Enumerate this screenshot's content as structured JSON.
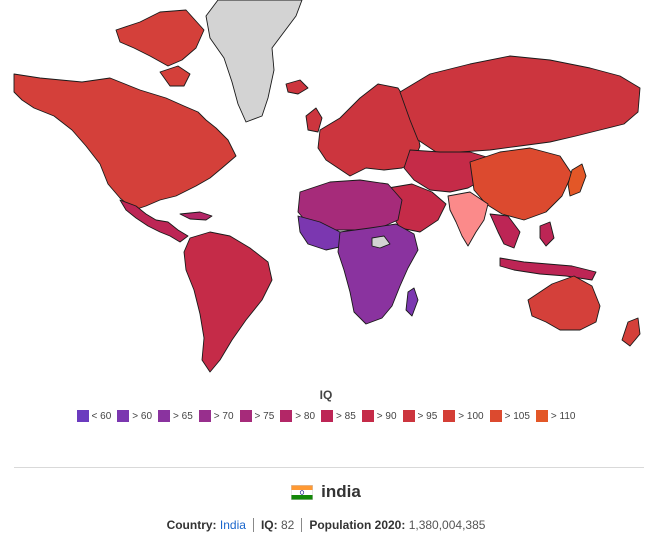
{
  "legend": {
    "title": "IQ",
    "items": [
      {
        "label": "< 60",
        "color": "#6b3bbf"
      },
      {
        "label": "> 60",
        "color": "#7b37b0"
      },
      {
        "label": "> 65",
        "color": "#8a339f"
      },
      {
        "label": "> 70",
        "color": "#982f8d"
      },
      {
        "label": "> 75",
        "color": "#a62b7a"
      },
      {
        "label": "> 80",
        "color": "#b32767"
      },
      {
        "label": "> 85",
        "color": "#bd2555"
      },
      {
        "label": "> 90",
        "color": "#c52b48"
      },
      {
        "label": "> 95",
        "color": "#cc353e"
      },
      {
        "label": "> 100",
        "color": "#d43e36"
      },
      {
        "label": "> 105",
        "color": "#dc4a2f"
      },
      {
        "label": "> 110",
        "color": "#e35727"
      }
    ]
  },
  "selected_country": {
    "name": "india",
    "highlight_color": "#fb8a8a",
    "no_data_color": "#d3d3d3",
    "country_label": "Country:",
    "country_value": "India",
    "iq_label": "IQ:",
    "iq_value": "82",
    "population_label": "Population 2020:",
    "population_value": "1,380,004,385"
  }
}
